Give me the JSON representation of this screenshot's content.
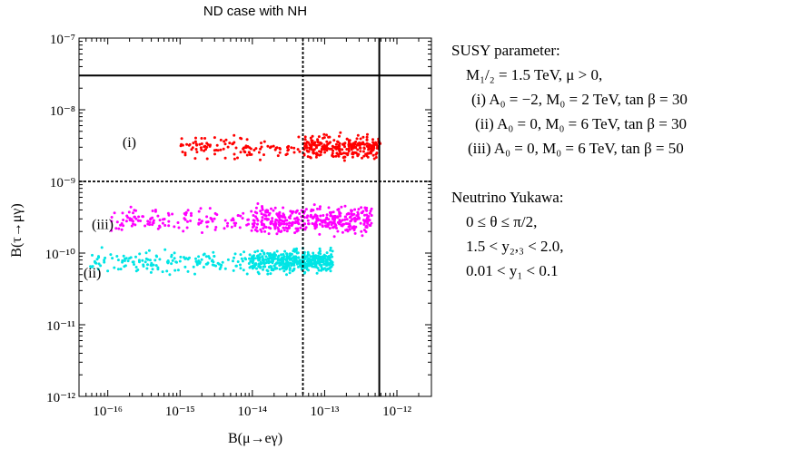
{
  "chart_data": {
    "type": "scatter",
    "title": "ND case with NH",
    "xlabel": "B(μ→eγ)",
    "ylabel": "B(τ→μγ)",
    "xscale": "log",
    "yscale": "log",
    "xlim": [
      4e-17,
      3e-12
    ],
    "ylim": [
      1e-12,
      1e-07
    ],
    "x_ticks": [
      {
        "value": 1e-16,
        "label": "10⁻¹⁶"
      },
      {
        "value": 1e-15,
        "label": "10⁻¹⁵"
      },
      {
        "value": 1e-14,
        "label": "10⁻¹⁴"
      },
      {
        "value": 1e-13,
        "label": "10⁻¹³"
      },
      {
        "value": 1e-12,
        "label": "10⁻¹²"
      }
    ],
    "y_ticks": [
      {
        "value": 1e-07,
        "label": "10⁻⁷"
      },
      {
        "value": 1e-08,
        "label": "10⁻⁸"
      },
      {
        "value": 1e-09,
        "label": "10⁻⁹"
      },
      {
        "value": 1e-10,
        "label": "10⁻¹⁰"
      },
      {
        "value": 1e-11,
        "label": "10⁻¹¹"
      },
      {
        "value": 1e-12,
        "label": "10⁻¹²"
      }
    ],
    "reference_lines": [
      {
        "orientation": "horizontal",
        "value": 3e-08,
        "style": "solid"
      },
      {
        "orientation": "horizontal",
        "value": 1e-09,
        "style": "dotted"
      },
      {
        "orientation": "vertical",
        "value": 5.7e-13,
        "style": "solid"
      },
      {
        "orientation": "vertical",
        "value": 5e-14,
        "style": "dotted"
      }
    ],
    "series": [
      {
        "label": "(i)",
        "color": "#ff0000",
        "count": 380,
        "x_range": [
          1e-15,
          6e-13
        ],
        "y_range": [
          1.8e-09,
          5e-09
        ],
        "x_dense_from": 5e-14
      },
      {
        "label": "(iii)",
        "color": "#ff00ff",
        "count": 520,
        "x_range": [
          1.1e-16,
          4.5e-13
        ],
        "y_range": [
          1.6e-10,
          5.2e-10
        ],
        "x_dense_from": 1e-14
      },
      {
        "label": "(ii)",
        "color": "#00e5e5",
        "count": 600,
        "x_range": [
          5.5e-17,
          1.3e-13
        ],
        "y_range": [
          4.5e-11,
          1.3e-10
        ],
        "x_dense_from": 1e-14
      }
    ]
  },
  "panel": {
    "susy_title": "SUSY parameter:",
    "susy_line1": "M₁/₂ = 1.5 TeV,  μ > 0,",
    "susy_line2": "(i) A₀ = −2,  M₀ = 2 TeV,  tan β = 30",
    "susy_line3": "(ii) A₀ = 0,  M₀ = 6 TeV,  tan β = 30",
    "susy_line4": "(iii) A₀ = 0,  M₀ = 6 TeV,  tan β = 50",
    "yukawa_title": "Neutrino Yukawa:",
    "yukawa_line1": "0 ≤ θ ≤ π/2,",
    "yukawa_line2": "1.5 < y₂,₃ < 2.0,",
    "yukawa_line3": "0.01 < y₁ < 0.1"
  }
}
